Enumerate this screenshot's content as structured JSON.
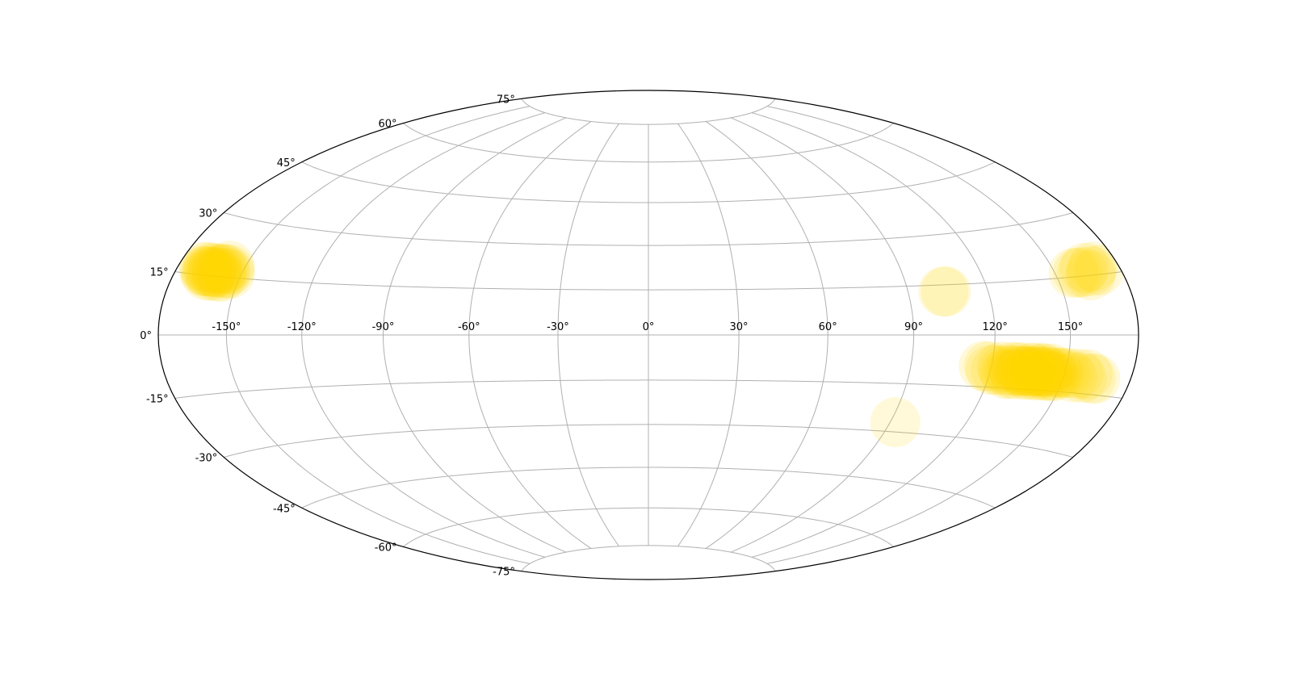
{
  "chart_data": {
    "type": "scatter",
    "projection": "hammer",
    "grid": true,
    "marker_color": "#ffd700",
    "marker_alpha": 0.15,
    "x_ticks": [
      -150,
      -120,
      -90,
      -60,
      -30,
      0,
      30,
      60,
      90,
      120,
      150
    ],
    "x_tick_labels": [
      "-150°",
      "-120°",
      "-90°",
      "-60°",
      "-30°",
      "0°",
      "30°",
      "60°",
      "90°",
      "120°",
      "150°"
    ],
    "y_ticks": [
      -75,
      -60,
      -45,
      -30,
      -15,
      0,
      15,
      30,
      45,
      60,
      75
    ],
    "y_tick_labels": [
      "-75°",
      "-60°",
      "-45°",
      "-30°",
      "-15°",
      "0°",
      "15°",
      "30°",
      "45°",
      "60°",
      "75°"
    ],
    "series": [
      {
        "points": [
          {
            "lon": -168,
            "lat": 17
          },
          {
            "lon": -167,
            "lat": 16
          },
          {
            "lon": -166,
            "lat": 17
          },
          {
            "lon": -165,
            "lat": 16
          },
          {
            "lon": -164,
            "lat": 17
          },
          {
            "lon": -163,
            "lat": 16
          },
          {
            "lon": -162,
            "lat": 17
          },
          {
            "lon": -161,
            "lat": 16
          },
          {
            "lon": -160,
            "lat": 17
          },
          {
            "lon": -159,
            "lat": 16
          },
          {
            "lon": -158,
            "lat": 17
          },
          {
            "lon": -157,
            "lat": 16
          },
          {
            "lon": -156,
            "lat": 17
          },
          {
            "lon": -165,
            "lat": 15
          },
          {
            "lon": -163,
            "lat": 15
          },
          {
            "lon": -160,
            "lat": 15
          },
          {
            "lon": -158,
            "lat": 15
          },
          {
            "lon": -166,
            "lat": 16
          },
          {
            "lon": -164,
            "lat": 16
          },
          {
            "lon": -162,
            "lat": 16
          },
          {
            "lon": -159,
            "lat": 17
          },
          {
            "lon": -155,
            "lat": 16
          },
          {
            "lon": -157,
            "lat": 18
          },
          {
            "lon": 103,
            "lat": 13
          },
          {
            "lon": 104,
            "lat": 13
          },
          {
            "lon": 158,
            "lat": 16
          },
          {
            "lon": 160,
            "lat": 16
          },
          {
            "lon": 162,
            "lat": 16
          },
          {
            "lon": 164,
            "lat": 17
          },
          {
            "lon": 166,
            "lat": 16
          },
          {
            "lon": 168,
            "lat": 17
          },
          {
            "lon": 170,
            "lat": 16
          },
          {
            "lon": 165,
            "lat": 15
          },
          {
            "lon": 117,
            "lat": -9
          },
          {
            "lon": 119,
            "lat": -9
          },
          {
            "lon": 120,
            "lat": -10
          },
          {
            "lon": 122,
            "lat": -10
          },
          {
            "lon": 124,
            "lat": -9
          },
          {
            "lon": 125,
            "lat": -10
          },
          {
            "lon": 126,
            "lat": -11
          },
          {
            "lon": 127,
            "lat": -10
          },
          {
            "lon": 128,
            "lat": -9
          },
          {
            "lon": 129,
            "lat": -10
          },
          {
            "lon": 130,
            "lat": -11
          },
          {
            "lon": 131,
            "lat": -10
          },
          {
            "lon": 132,
            "lat": -9
          },
          {
            "lon": 133,
            "lat": -10
          },
          {
            "lon": 134,
            "lat": -11
          },
          {
            "lon": 135,
            "lat": -10
          },
          {
            "lon": 136,
            "lat": -9
          },
          {
            "lon": 137,
            "lat": -10
          },
          {
            "lon": 138,
            "lat": -11
          },
          {
            "lon": 139,
            "lat": -10
          },
          {
            "lon": 140,
            "lat": -9
          },
          {
            "lon": 141,
            "lat": -10
          },
          {
            "lon": 142,
            "lat": -11
          },
          {
            "lon": 143,
            "lat": -10
          },
          {
            "lon": 144,
            "lat": -9
          },
          {
            "lon": 145,
            "lat": -10
          },
          {
            "lon": 146,
            "lat": -11
          },
          {
            "lon": 147,
            "lat": -10
          },
          {
            "lon": 148,
            "lat": -10
          },
          {
            "lon": 150,
            "lat": -10
          },
          {
            "lon": 152,
            "lat": -10
          },
          {
            "lon": 154,
            "lat": -11
          },
          {
            "lon": 156,
            "lat": -10
          },
          {
            "lon": 158,
            "lat": -11
          },
          {
            "lon": 160,
            "lat": -10
          },
          {
            "lon": 162,
            "lat": -11
          },
          {
            "lon": 164,
            "lat": -11
          },
          {
            "lon": 130,
            "lat": -9
          },
          {
            "lon": 135,
            "lat": -11
          },
          {
            "lon": 137,
            "lat": -9
          },
          {
            "lon": 139,
            "lat": -11
          },
          {
            "lon": 141,
            "lat": -9
          },
          {
            "lon": 143,
            "lat": -11
          },
          {
            "lon": 136,
            "lat": -10
          },
          {
            "lon": 138,
            "lat": -10
          },
          {
            "lon": 140,
            "lat": -10
          },
          {
            "lon": 142,
            "lat": -10
          },
          {
            "lon": 134,
            "lat": -10
          },
          {
            "lon": 132,
            "lat": -10
          },
          {
            "lon": 145,
            "lat": -11
          },
          {
            "lon": 128,
            "lat": -11
          },
          {
            "lon": 92,
            "lat": -27
          }
        ]
      }
    ]
  }
}
